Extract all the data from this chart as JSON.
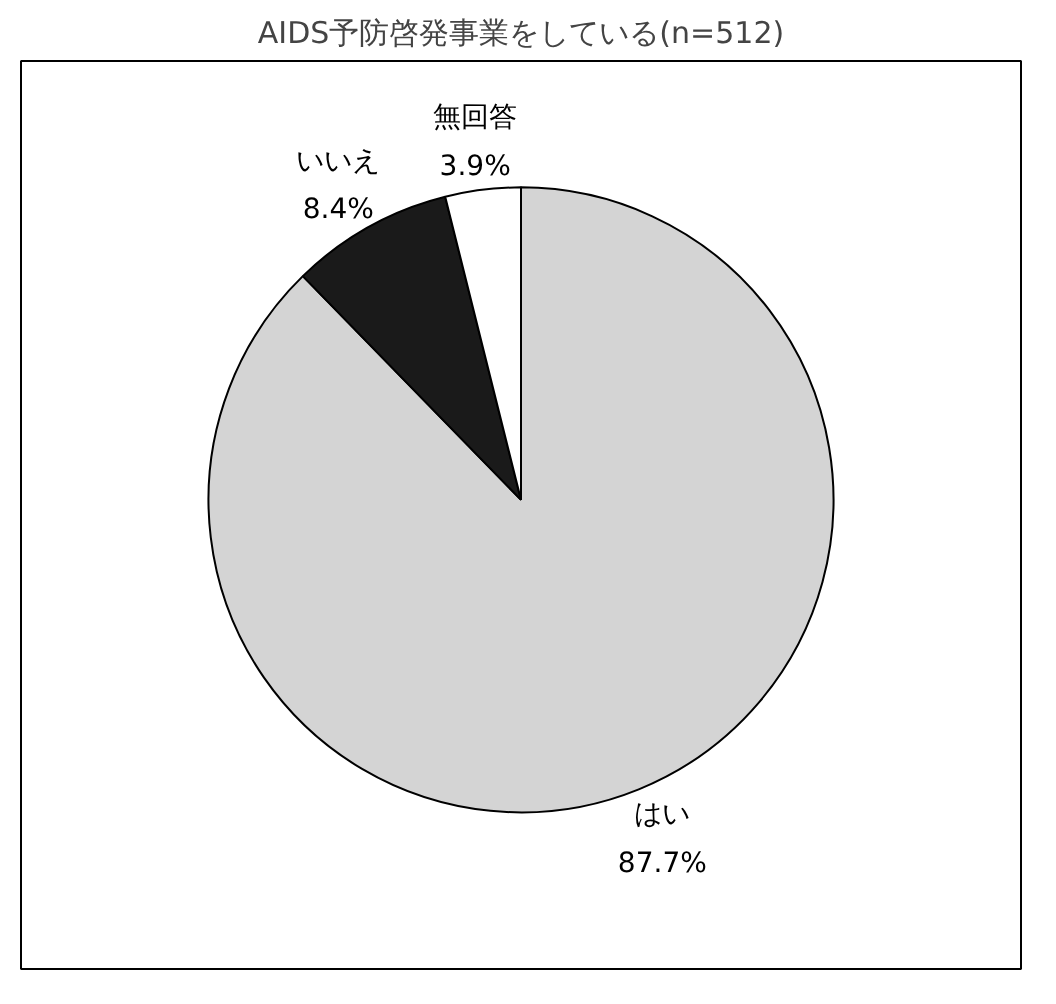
{
  "chart_data": {
    "type": "pie",
    "title": "AIDS予防啓発事業をしている(n=512)",
    "categories": [
      "はい",
      "いいえ",
      "無回答"
    ],
    "values": [
      87.7,
      8.4,
      3.9
    ],
    "colors": [
      "#d4d4d4",
      "#1a1a1a",
      "#ffffff"
    ],
    "value_labels": [
      "87.7%",
      "8.4%",
      "3.9%"
    ]
  }
}
